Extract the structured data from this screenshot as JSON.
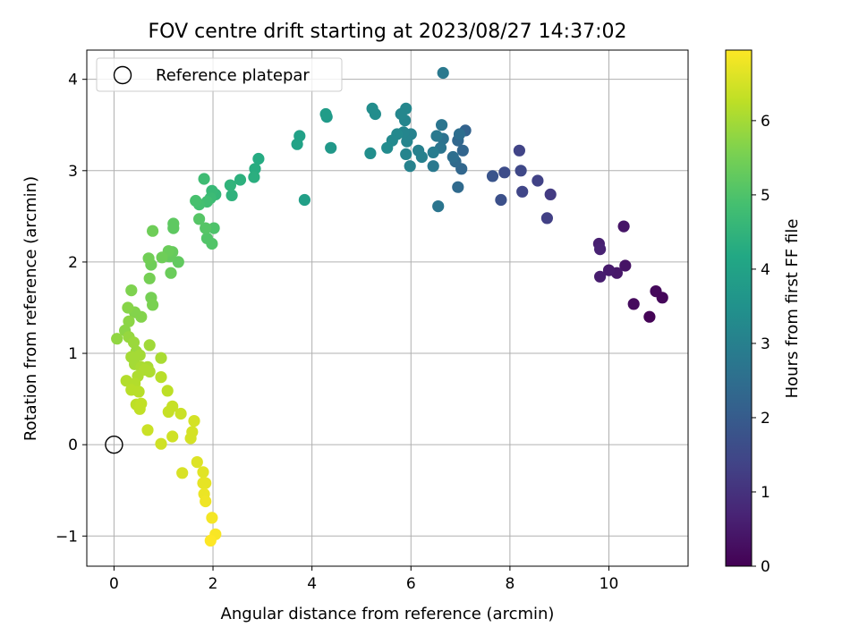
{
  "chart_data": {
    "type": "scatter",
    "title": "FOV centre drift starting at 2023/08/27 14:37:02",
    "xlabel": "Angular distance from reference (arcmin)",
    "ylabel": "Rotation from reference (arcmin)",
    "xlim": [
      -0.55,
      11.6
    ],
    "ylim": [
      -1.33,
      4.32
    ],
    "xticks": [
      "0",
      "2",
      "4",
      "6",
      "8",
      "10"
    ],
    "xtick_values": [
      0,
      2,
      4,
      6,
      8,
      10
    ],
    "yticks": [
      "−1",
      "0",
      "1",
      "2",
      "3",
      "4"
    ],
    "ytick_values": [
      -1,
      0,
      1,
      2,
      3,
      4
    ],
    "grid": true,
    "colormap": "viridis",
    "colorbar": {
      "label": "Hours from first FF file",
      "range": [
        0,
        6.95
      ],
      "ticks": [
        "0",
        "1",
        "2",
        "3",
        "4",
        "5",
        "6"
      ],
      "tick_values": [
        0,
        1,
        2,
        3,
        4,
        5,
        6
      ]
    },
    "legend": {
      "label": "Reference platepar",
      "position": "top-left"
    },
    "reference_point": {
      "x": 0,
      "y": 0
    },
    "points": [
      [
        10.95,
        1.68,
        0.15
      ],
      [
        11.08,
        1.61,
        0.12
      ],
      [
        10.82,
        1.4,
        0.05
      ],
      [
        10.5,
        1.54,
        0.2
      ],
      [
        10.33,
        1.96,
        0.35
      ],
      [
        10.3,
        2.39,
        0.4
      ],
      [
        10.16,
        1.88,
        0.45
      ],
      [
        10.0,
        1.91,
        0.5
      ],
      [
        9.82,
        1.84,
        0.55
      ],
      [
        9.8,
        2.2,
        0.6
      ],
      [
        9.82,
        2.14,
        0.65
      ],
      [
        8.82,
        2.74,
        1.2
      ],
      [
        8.75,
        2.48,
        1.3
      ],
      [
        8.56,
        2.89,
        1.35
      ],
      [
        8.25,
        2.77,
        1.45
      ],
      [
        8.22,
        3.0,
        1.5
      ],
      [
        8.19,
        3.22,
        1.4
      ],
      [
        7.89,
        2.98,
        1.6
      ],
      [
        7.82,
        2.68,
        1.7
      ],
      [
        7.65,
        2.94,
        1.8
      ],
      [
        7.1,
        3.44,
        2.2
      ],
      [
        7.05,
        3.22,
        2.25
      ],
      [
        7.02,
        3.02,
        2.3
      ],
      [
        6.95,
        3.33,
        2.3
      ],
      [
        6.9,
        3.1,
        2.4
      ],
      [
        6.95,
        2.82,
        2.4
      ],
      [
        6.98,
        3.4,
        2.5
      ],
      [
        6.85,
        3.15,
        2.5
      ],
      [
        6.65,
        3.35,
        2.6
      ],
      [
        6.62,
        3.5,
        2.7
      ],
      [
        6.6,
        3.25,
        2.7
      ],
      [
        6.52,
        3.38,
        2.8
      ],
      [
        6.55,
        2.61,
        2.7
      ],
      [
        6.45,
        3.05,
        2.8
      ],
      [
        6.45,
        3.2,
        2.9
      ],
      [
        6.65,
        4.07,
        2.8
      ],
      [
        6.22,
        3.15,
        3.0
      ],
      [
        6.15,
        3.22,
        3.0
      ],
      [
        6.0,
        3.4,
        3.05
      ],
      [
        5.98,
        3.05,
        3.05
      ],
      [
        5.9,
        3.18,
        3.1
      ],
      [
        5.92,
        3.32,
        3.1
      ],
      [
        5.85,
        3.42,
        3.15
      ],
      [
        5.88,
        3.55,
        3.15
      ],
      [
        5.9,
        3.68,
        3.2
      ],
      [
        5.8,
        3.62,
        3.2
      ],
      [
        5.72,
        3.4,
        3.25
      ],
      [
        5.62,
        3.33,
        3.25
      ],
      [
        5.52,
        3.25,
        3.3
      ],
      [
        5.28,
        3.62,
        3.35
      ],
      [
        5.22,
        3.68,
        3.35
      ],
      [
        5.18,
        3.19,
        3.4
      ],
      [
        4.38,
        3.25,
        3.7
      ],
      [
        4.3,
        3.59,
        3.75
      ],
      [
        4.28,
        3.62,
        3.8
      ],
      [
        3.85,
        2.68,
        3.9
      ],
      [
        3.75,
        3.38,
        3.95
      ],
      [
        3.7,
        3.29,
        4.0
      ],
      [
        2.92,
        3.13,
        4.25
      ],
      [
        2.85,
        3.02,
        4.3
      ],
      [
        2.83,
        2.93,
        4.35
      ],
      [
        2.55,
        2.9,
        4.4
      ],
      [
        2.38,
        2.73,
        4.45
      ],
      [
        2.35,
        2.84,
        4.5
      ],
      [
        2.05,
        2.74,
        4.6
      ],
      [
        1.98,
        2.78,
        4.65
      ],
      [
        1.95,
        2.7,
        4.7
      ],
      [
        1.82,
        2.91,
        4.75
      ],
      [
        1.88,
        2.66,
        4.8
      ],
      [
        1.72,
        2.63,
        4.85
      ],
      [
        1.65,
        2.67,
        4.9
      ],
      [
        2.02,
        2.37,
        5.0
      ],
      [
        1.98,
        2.2,
        5.05
      ],
      [
        1.88,
        2.26,
        5.05
      ],
      [
        1.85,
        2.37,
        5.1
      ],
      [
        1.72,
        2.47,
        5.1
      ],
      [
        1.2,
        2.42,
        5.2
      ],
      [
        1.2,
        2.37,
        5.2
      ],
      [
        1.3,
        2.0,
        5.25
      ],
      [
        1.18,
        2.11,
        5.3
      ],
      [
        1.12,
        2.06,
        5.3
      ],
      [
        1.1,
        2.12,
        5.35
      ],
      [
        1.15,
        1.88,
        5.35
      ],
      [
        0.97,
        2.05,
        5.4
      ],
      [
        0.75,
        1.97,
        5.4
      ],
      [
        0.78,
        2.34,
        5.4
      ],
      [
        0.7,
        2.04,
        5.45
      ],
      [
        0.72,
        1.82,
        5.5
      ],
      [
        0.75,
        1.61,
        5.5
      ],
      [
        0.78,
        1.53,
        5.55
      ],
      [
        0.35,
        1.69,
        5.6
      ],
      [
        0.55,
        1.4,
        5.65
      ],
      [
        0.42,
        1.45,
        5.65
      ],
      [
        0.28,
        1.5,
        5.7
      ],
      [
        0.3,
        1.35,
        5.75
      ],
      [
        0.22,
        1.25,
        5.75
      ],
      [
        0.06,
        1.16,
        5.8
      ],
      [
        0.3,
        1.18,
        5.85
      ],
      [
        0.4,
        1.12,
        5.9
      ],
      [
        0.45,
        1.02,
        5.9
      ],
      [
        0.72,
        1.09,
        5.95
      ],
      [
        0.52,
        0.98,
        6.0
      ],
      [
        0.35,
        0.96,
        6.0
      ],
      [
        0.42,
        0.88,
        6.0
      ],
      [
        0.55,
        0.85,
        6.05
      ],
      [
        0.68,
        0.85,
        6.05
      ],
      [
        0.95,
        0.95,
        6.05
      ],
      [
        0.72,
        0.8,
        6.1
      ],
      [
        0.48,
        0.75,
        6.1
      ],
      [
        0.62,
        0.82,
        6.1
      ],
      [
        0.25,
        0.7,
        6.15
      ],
      [
        0.42,
        0.67,
        6.15
      ],
      [
        0.35,
        0.6,
        6.2
      ],
      [
        0.5,
        0.58,
        6.2
      ],
      [
        0.95,
        0.74,
        6.2
      ],
      [
        1.08,
        0.59,
        6.25
      ],
      [
        0.45,
        0.44,
        6.25
      ],
      [
        0.52,
        0.39,
        6.3
      ],
      [
        0.55,
        0.45,
        6.3
      ],
      [
        1.1,
        0.36,
        6.35
      ],
      [
        1.18,
        0.42,
        6.35
      ],
      [
        1.35,
        0.34,
        6.4
      ],
      [
        0.68,
        0.16,
        6.4
      ],
      [
        1.18,
        0.09,
        6.45
      ],
      [
        0.95,
        0.01,
        6.45
      ],
      [
        1.55,
        0.07,
        6.5
      ],
      [
        1.58,
        0.14,
        6.5
      ],
      [
        1.62,
        0.26,
        6.5
      ],
      [
        1.38,
        -0.31,
        6.55
      ],
      [
        1.68,
        -0.19,
        6.6
      ],
      [
        1.8,
        -0.3,
        6.65
      ],
      [
        1.8,
        -0.42,
        6.7
      ],
      [
        1.85,
        -0.42,
        6.7
      ],
      [
        1.82,
        -0.54,
        6.75
      ],
      [
        1.85,
        -0.62,
        6.8
      ],
      [
        1.98,
        -0.8,
        6.85
      ],
      [
        2.05,
        -0.98,
        6.9
      ],
      [
        1.95,
        -1.05,
        6.95
      ]
    ]
  }
}
